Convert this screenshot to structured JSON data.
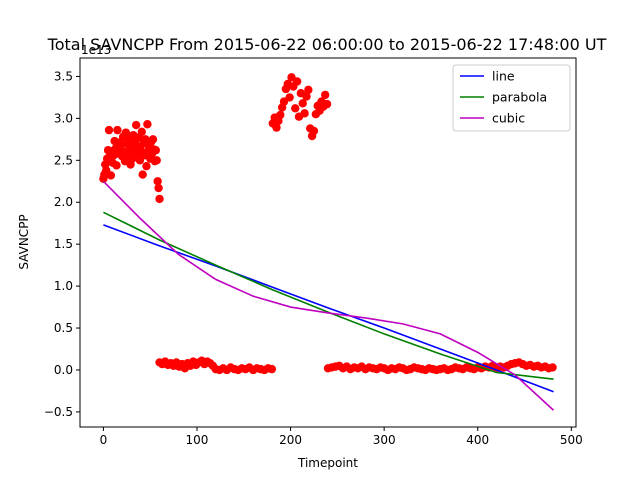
{
  "chart_data": {
    "type": "scatter",
    "title": "Total SAVNCPP From 2015-06-22 06:00:00 to 2015-06-22 17:48:00 UT",
    "xlabel": "Timepoint",
    "ylabel": "SAVNCPP",
    "y_offset_label": "1e13",
    "xlim": [
      -25,
      505
    ],
    "ylim": [
      -0.68,
      3.72
    ],
    "x_ticks": [
      0,
      100,
      200,
      300,
      400,
      500
    ],
    "y_ticks": [
      -0.5,
      0.0,
      0.5,
      1.0,
      1.5,
      2.0,
      2.5,
      3.0,
      3.5
    ],
    "x_tick_labels": [
      "0",
      "100",
      "200",
      "300",
      "400",
      "500"
    ],
    "y_tick_labels": [
      "−0.5",
      "0.0",
      "0.5",
      "1.0",
      "1.5",
      "2.0",
      "2.5",
      "3.0",
      "3.5"
    ],
    "grid": false,
    "legend_position": "top-right",
    "scatter": {
      "color": "#ff0000",
      "points": [
        [
          0,
          2.28
        ],
        [
          1,
          2.33
        ],
        [
          2,
          2.45
        ],
        [
          3,
          2.38
        ],
        [
          4,
          2.52
        ],
        [
          5,
          2.62
        ],
        [
          6,
          2.86
        ],
        [
          7,
          2.55
        ],
        [
          8,
          2.32
        ],
        [
          9,
          2.61
        ],
        [
          10,
          2.47
        ],
        [
          11,
          2.56
        ],
        [
          12,
          2.73
        ],
        [
          13,
          2.64
        ],
        [
          14,
          2.44
        ],
        [
          15,
          2.86
        ],
        [
          16,
          2.58
        ],
        [
          17,
          2.71
        ],
        [
          18,
          2.62
        ],
        [
          19,
          2.68
        ],
        [
          20,
          2.55
        ],
        [
          21,
          2.78
        ],
        [
          22,
          2.6
        ],
        [
          23,
          2.49
        ],
        [
          24,
          2.83
        ],
        [
          25,
          2.7
        ],
        [
          26,
          2.57
        ],
        [
          27,
          2.76
        ],
        [
          28,
          2.64
        ],
        [
          29,
          2.45
        ],
        [
          30,
          2.67
        ],
        [
          31,
          2.52
        ],
        [
          32,
          2.8
        ],
        [
          33,
          2.61
        ],
        [
          34,
          2.72
        ],
        [
          35,
          2.92
        ],
        [
          36,
          2.58
        ],
        [
          37,
          2.66
        ],
        [
          38,
          2.77
        ],
        [
          39,
          2.5
        ],
        [
          40,
          2.62
        ],
        [
          41,
          2.84
        ],
        [
          42,
          2.33
        ],
        [
          43,
          2.7
        ],
        [
          44,
          2.56
        ],
        [
          45,
          2.75
        ],
        [
          46,
          2.43
        ],
        [
          47,
          2.93
        ],
        [
          48,
          2.61
        ],
        [
          49,
          2.66
        ],
        [
          50,
          2.52
        ],
        [
          51,
          2.72
        ],
        [
          52,
          2.58
        ],
        [
          53,
          2.75
        ],
        [
          54,
          2.63
        ],
        [
          55,
          2.49
        ],
        [
          56,
          2.62
        ],
        [
          57,
          2.5
        ],
        [
          58,
          2.25
        ],
        [
          59,
          2.17
        ],
        [
          60,
          2.04
        ],
        [
          60,
          0.09
        ],
        [
          63,
          0.07
        ],
        [
          66,
          0.1
        ],
        [
          69,
          0.06
        ],
        [
          72,
          0.08
        ],
        [
          75,
          0.05
        ],
        [
          78,
          0.09
        ],
        [
          81,
          0.04
        ],
        [
          84,
          0.07
        ],
        [
          87,
          0.02
        ],
        [
          90,
          0.08
        ],
        [
          93,
          0.05
        ],
        [
          96,
          0.1
        ],
        [
          99,
          0.06
        ],
        [
          102,
          0.09
        ],
        [
          105,
          0.11
        ],
        [
          108,
          0.07
        ],
        [
          111,
          0.1
        ],
        [
          114,
          0.08
        ],
        [
          117,
          0.05
        ],
        [
          120,
          0.01
        ],
        [
          124,
          0.0
        ],
        [
          128,
          0.02
        ],
        [
          132,
          0.0
        ],
        [
          136,
          0.03
        ],
        [
          140,
          0.01
        ],
        [
          144,
          0.0
        ],
        [
          148,
          0.02
        ],
        [
          152,
          0.01
        ],
        [
          156,
          0.03
        ],
        [
          160,
          0.0
        ],
        [
          164,
          0.02
        ],
        [
          168,
          0.01
        ],
        [
          172,
          0.0
        ],
        [
          176,
          0.02
        ],
        [
          180,
          0.01
        ],
        [
          181,
          2.94
        ],
        [
          183,
          3.01
        ],
        [
          185,
          2.89
        ],
        [
          187,
          2.97
        ],
        [
          189,
          3.04
        ],
        [
          191,
          3.13
        ],
        [
          193,
          3.2
        ],
        [
          195,
          3.35
        ],
        [
          197,
          3.41
        ],
        [
          199,
          3.25
        ],
        [
          201,
          3.49
        ],
        [
          203,
          3.38
        ],
        [
          205,
          3.12
        ],
        [
          207,
          3.44
        ],
        [
          209,
          3.02
        ],
        [
          211,
          3.3
        ],
        [
          213,
          3.18
        ],
        [
          215,
          3.06
        ],
        [
          217,
          3.26
        ],
        [
          219,
          3.34
        ],
        [
          221,
          2.88
        ],
        [
          223,
          2.79
        ],
        [
          225,
          2.85
        ],
        [
          227,
          3.05
        ],
        [
          229,
          3.15
        ],
        [
          231,
          3.09
        ],
        [
          233,
          3.2
        ],
        [
          235,
          3.14
        ],
        [
          237,
          3.28
        ],
        [
          239,
          3.17
        ],
        [
          240,
          0.02
        ],
        [
          244,
          0.03
        ],
        [
          248,
          0.04
        ],
        [
          252,
          0.05
        ],
        [
          256,
          0.02
        ],
        [
          260,
          0.04
        ],
        [
          264,
          0.01
        ],
        [
          268,
          0.03
        ],
        [
          272,
          0.02
        ],
        [
          276,
          0.04
        ],
        [
          280,
          0.01
        ],
        [
          284,
          0.03
        ],
        [
          288,
          0.02
        ],
        [
          292,
          0.01
        ],
        [
          296,
          0.03
        ],
        [
          300,
          0.02
        ],
        [
          304,
          0.0
        ],
        [
          308,
          0.02
        ],
        [
          312,
          0.01
        ],
        [
          316,
          0.03
        ],
        [
          320,
          0.02
        ],
        [
          324,
          0.0
        ],
        [
          328,
          0.01
        ],
        [
          332,
          0.03
        ],
        [
          336,
          0.02
        ],
        [
          340,
          0.01
        ],
        [
          344,
          0.0
        ],
        [
          348,
          0.02
        ],
        [
          352,
          0.01
        ],
        [
          356,
          0.0
        ],
        [
          360,
          0.01
        ],
        [
          364,
          0.02
        ],
        [
          368,
          0.0
        ],
        [
          372,
          0.01
        ],
        [
          376,
          0.03
        ],
        [
          380,
          0.02
        ],
        [
          384,
          0.01
        ],
        [
          388,
          0.03
        ],
        [
          392,
          0.02
        ],
        [
          396,
          0.01
        ],
        [
          400,
          0.03
        ],
        [
          404,
          0.02
        ],
        [
          408,
          0.04
        ],
        [
          412,
          0.03
        ],
        [
          416,
          0.05
        ],
        [
          420,
          0.02
        ],
        [
          424,
          0.04
        ],
        [
          428,
          0.03
        ],
        [
          432,
          0.05
        ],
        [
          436,
          0.07
        ],
        [
          440,
          0.08
        ],
        [
          444,
          0.09
        ],
        [
          448,
          0.07
        ],
        [
          452,
          0.05
        ],
        [
          456,
          0.06
        ],
        [
          460,
          0.04
        ],
        [
          464,
          0.05
        ],
        [
          468,
          0.03
        ],
        [
          472,
          0.04
        ],
        [
          476,
          0.02
        ],
        [
          480,
          0.03
        ]
      ]
    },
    "series": [
      {
        "name": "line",
        "color": "#0000ff",
        "x": [
          0,
          60,
          120,
          180,
          240,
          300,
          360,
          420,
          481
        ],
        "values": [
          1.73,
          1.48,
          1.24,
          0.99,
          0.74,
          0.5,
          0.25,
          0.0,
          -0.26
        ]
      },
      {
        "name": "parabola",
        "color": "#008000",
        "x": [
          0,
          60,
          120,
          180,
          240,
          300,
          360,
          420,
          481
        ],
        "values": [
          1.88,
          1.55,
          1.25,
          0.96,
          0.69,
          0.43,
          0.19,
          -0.03,
          -0.11
        ]
      },
      {
        "name": "cubic",
        "color": "#bf00bf",
        "x": [
          0,
          40,
          80,
          120,
          160,
          200,
          240,
          280,
          320,
          360,
          400,
          440,
          481
        ],
        "values": [
          2.25,
          1.8,
          1.38,
          1.08,
          0.88,
          0.75,
          0.68,
          0.62,
          0.55,
          0.43,
          0.21,
          -0.06,
          -0.48
        ]
      }
    ]
  }
}
